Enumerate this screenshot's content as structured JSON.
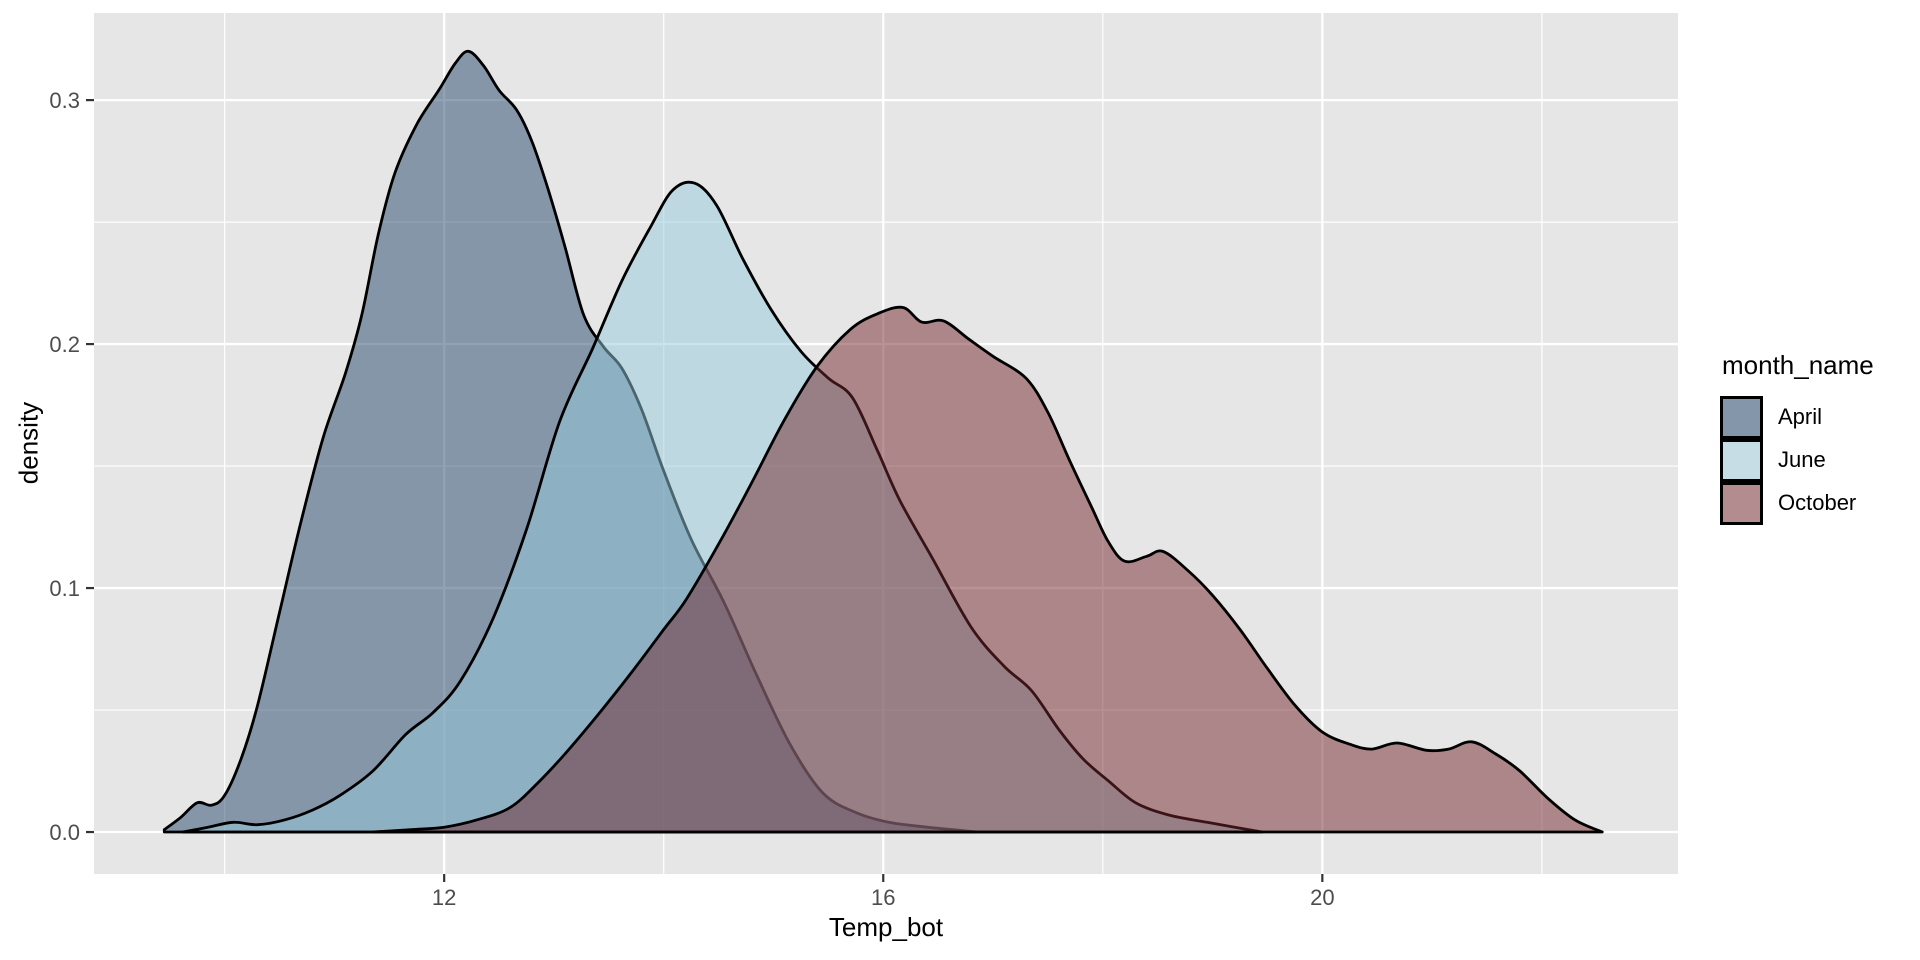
{
  "chart_data": {
    "type": "area",
    "subtype": "density-curves-overlapping",
    "title": "",
    "xlabel": "Temp_bot",
    "ylabel": "density",
    "legend_title": "month_name",
    "legend_position": "right",
    "grid": true,
    "panel_bg": "#e6e6e6",
    "grid_color": "#ffffff",
    "tick_color": "#333333",
    "tick_label_color": "#4d4d4d",
    "outline_color": "#000000",
    "fill_opacity": 0.5,
    "xlim": [
      8.81,
      23.24
    ],
    "ylim": [
      -0.0172,
      0.3357
    ],
    "x_major_ticks": [
      12,
      16,
      20
    ],
    "x_tick_labels": [
      "12",
      "16",
      "20"
    ],
    "x_minor_ticks": [
      10,
      14,
      18,
      22
    ],
    "y_major_ticks": [
      0.0,
      0.1,
      0.2,
      0.3
    ],
    "y_tick_labels": [
      "0.0",
      "0.1",
      "0.2",
      "0.3"
    ],
    "y_minor_ticks": [
      0.05,
      0.15,
      0.25
    ],
    "series": [
      {
        "name": "April",
        "fill": "#24466b",
        "legend_swatch": "#8496a9",
        "points": [
          [
            9.45,
            0.001
          ],
          [
            9.6,
            0.006
          ],
          [
            9.75,
            0.012
          ],
          [
            9.88,
            0.011
          ],
          [
            10.0,
            0.015
          ],
          [
            10.15,
            0.03
          ],
          [
            10.3,
            0.052
          ],
          [
            10.5,
            0.09
          ],
          [
            10.7,
            0.128
          ],
          [
            10.9,
            0.162
          ],
          [
            11.1,
            0.188
          ],
          [
            11.25,
            0.212
          ],
          [
            11.4,
            0.245
          ],
          [
            11.55,
            0.27
          ],
          [
            11.75,
            0.29
          ],
          [
            11.95,
            0.304
          ],
          [
            12.1,
            0.315
          ],
          [
            12.22,
            0.32
          ],
          [
            12.36,
            0.314
          ],
          [
            12.5,
            0.304
          ],
          [
            12.66,
            0.296
          ],
          [
            12.8,
            0.283
          ],
          [
            12.95,
            0.263
          ],
          [
            13.1,
            0.24
          ],
          [
            13.27,
            0.212
          ],
          [
            13.45,
            0.199
          ],
          [
            13.62,
            0.19
          ],
          [
            13.8,
            0.173
          ],
          [
            14.0,
            0.148
          ],
          [
            14.25,
            0.12
          ],
          [
            14.55,
            0.094
          ],
          [
            14.85,
            0.064
          ],
          [
            15.15,
            0.036
          ],
          [
            15.45,
            0.016
          ],
          [
            15.75,
            0.008
          ],
          [
            16.05,
            0.004
          ],
          [
            16.4,
            0.002
          ],
          [
            16.85,
            0.0
          ]
        ]
      },
      {
        "name": "June",
        "fill": "#96cadc",
        "legend_swatch": "#c6dde5",
        "points": [
          [
            9.62,
            0.0
          ],
          [
            9.85,
            0.002
          ],
          [
            10.08,
            0.004
          ],
          [
            10.3,
            0.003
          ],
          [
            10.55,
            0.005
          ],
          [
            10.8,
            0.009
          ],
          [
            11.05,
            0.015
          ],
          [
            11.35,
            0.025
          ],
          [
            11.65,
            0.04
          ],
          [
            11.9,
            0.049
          ],
          [
            12.15,
            0.062
          ],
          [
            12.45,
            0.088
          ],
          [
            12.75,
            0.124
          ],
          [
            13.05,
            0.168
          ],
          [
            13.35,
            0.198
          ],
          [
            13.62,
            0.226
          ],
          [
            13.88,
            0.248
          ],
          [
            14.08,
            0.263
          ],
          [
            14.28,
            0.266
          ],
          [
            14.48,
            0.257
          ],
          [
            14.72,
            0.235
          ],
          [
            14.98,
            0.214
          ],
          [
            15.25,
            0.197
          ],
          [
            15.5,
            0.186
          ],
          [
            15.72,
            0.178
          ],
          [
            15.95,
            0.156
          ],
          [
            16.15,
            0.136
          ],
          [
            16.45,
            0.112
          ],
          [
            16.8,
            0.084
          ],
          [
            17.1,
            0.068
          ],
          [
            17.35,
            0.058
          ],
          [
            17.6,
            0.042
          ],
          [
            17.82,
            0.03
          ],
          [
            18.05,
            0.021
          ],
          [
            18.3,
            0.012
          ],
          [
            18.6,
            0.007
          ],
          [
            18.95,
            0.004
          ],
          [
            19.45,
            0.0
          ]
        ]
      },
      {
        "name": "October",
        "fill": "#72262c",
        "legend_swatch": "#b28c8f",
        "points": [
          [
            11.35,
            0.0
          ],
          [
            11.7,
            0.001
          ],
          [
            12.0,
            0.002
          ],
          [
            12.3,
            0.005
          ],
          [
            12.6,
            0.01
          ],
          [
            12.85,
            0.02
          ],
          [
            13.1,
            0.032
          ],
          [
            13.4,
            0.048
          ],
          [
            13.7,
            0.065
          ],
          [
            14.0,
            0.083
          ],
          [
            14.2,
            0.095
          ],
          [
            14.5,
            0.118
          ],
          [
            14.8,
            0.143
          ],
          [
            15.1,
            0.169
          ],
          [
            15.4,
            0.191
          ],
          [
            15.7,
            0.206
          ],
          [
            15.95,
            0.2125
          ],
          [
            16.18,
            0.215
          ],
          [
            16.35,
            0.209
          ],
          [
            16.55,
            0.2095
          ],
          [
            16.78,
            0.202
          ],
          [
            17.0,
            0.195
          ],
          [
            17.3,
            0.186
          ],
          [
            17.5,
            0.172
          ],
          [
            17.7,
            0.152
          ],
          [
            17.9,
            0.133
          ],
          [
            18.05,
            0.119
          ],
          [
            18.2,
            0.111
          ],
          [
            18.4,
            0.113
          ],
          [
            18.55,
            0.115
          ],
          [
            18.78,
            0.107
          ],
          [
            19.0,
            0.097
          ],
          [
            19.25,
            0.083
          ],
          [
            19.5,
            0.067
          ],
          [
            19.75,
            0.052
          ],
          [
            20.0,
            0.041
          ],
          [
            20.25,
            0.036
          ],
          [
            20.45,
            0.034
          ],
          [
            20.68,
            0.0365
          ],
          [
            20.95,
            0.0335
          ],
          [
            21.15,
            0.034
          ],
          [
            21.36,
            0.037
          ],
          [
            21.58,
            0.032
          ],
          [
            21.8,
            0.025
          ],
          [
            22.05,
            0.014
          ],
          [
            22.3,
            0.005
          ],
          [
            22.55,
            0.0
          ]
        ]
      }
    ]
  }
}
